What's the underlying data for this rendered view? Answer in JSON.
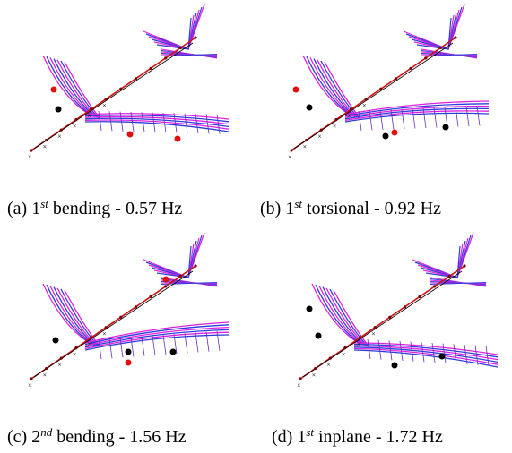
{
  "panels": [
    {
      "label": "(a)",
      "ordinal": "1",
      "suffix": "st",
      "text": "bending - 0.57 Hz"
    },
    {
      "label": "(b)",
      "ordinal": "1",
      "suffix": "st",
      "text": "torsional - 0.92 Hz"
    },
    {
      "label": "(c)",
      "ordinal": "2",
      "suffix": "nd",
      "text": "bending - 1.56 Hz"
    },
    {
      "label": "(d)",
      "ordinal": "1",
      "suffix": "st",
      "text": "inplane - 1.72 Hz"
    }
  ]
}
